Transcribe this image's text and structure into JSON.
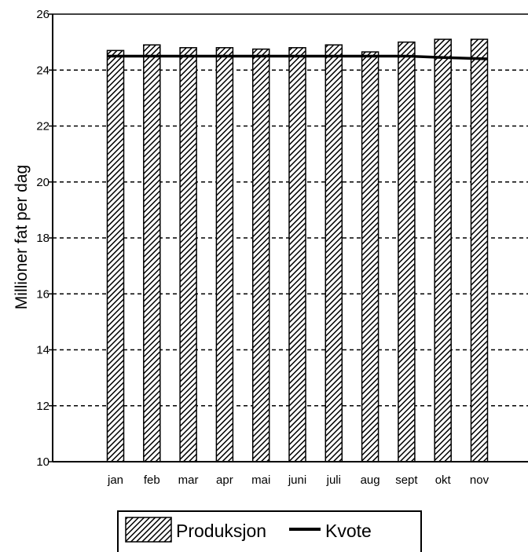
{
  "chart_data": {
    "type": "bar",
    "title": "",
    "xlabel": "",
    "ylabel": "Millioner fat per dag",
    "ylim": [
      10,
      26
    ],
    "yticks": [
      10,
      12,
      14,
      16,
      18,
      20,
      22,
      24,
      26
    ],
    "grid": "horizontal dashed",
    "legend_position": "bottom",
    "categories": [
      "jan",
      "feb",
      "mar",
      "apr",
      "mai",
      "juni",
      "juli",
      "aug",
      "sept",
      "okt",
      "nov"
    ],
    "series": [
      {
        "name": "Produksjon",
        "type": "bar",
        "pattern": "diagonal-hatch",
        "values": [
          24.7,
          24.9,
          24.8,
          24.8,
          24.75,
          24.8,
          24.9,
          24.65,
          25.0,
          25.1,
          25.1
        ]
      },
      {
        "name": "Kvote",
        "type": "line",
        "values": [
          24.5,
          24.5,
          24.5,
          24.5,
          24.5,
          24.5,
          24.5,
          24.5,
          24.5,
          24.45,
          24.4
        ]
      }
    ]
  },
  "legend": {
    "items": [
      "Produksjon",
      "Kvote"
    ]
  },
  "colors": {
    "ink": "#000000",
    "background": "#ffffff"
  }
}
